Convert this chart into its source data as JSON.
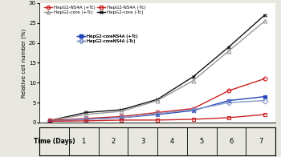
{
  "days": [
    1,
    2,
    3,
    4,
    5,
    6,
    7
  ],
  "series": {
    "HepG2-NS4A (+Tc)": [
      0.5,
      1.0,
      1.5,
      2.5,
      3.5,
      8.0,
      11.0
    ],
    "HepG2-NS4A (-Tc)": [
      0.3,
      0.5,
      0.8,
      0.8,
      0.9,
      1.2,
      2.0
    ],
    "HepG2-core (+Tc)": [
      0.5,
      2.5,
      3.5,
      6.0,
      11.5,
      19.5,
      27.0
    ],
    "HepG2-core (-Tc)": [
      0.5,
      2.5,
      3.5,
      6.0,
      11.5,
      19.5,
      27.0
    ],
    "HepG2-coreNS4A (+Tc)": [
      0.3,
      0.8,
      1.2,
      2.0,
      3.0,
      5.5,
      6.5
    ],
    "HepG2-coreNS4A (-Tc)": [
      0.3,
      0.8,
      1.2,
      2.2,
      3.2,
      5.0,
      5.5
    ]
  },
  "colors": {
    "HepG2-NS4A (+Tc)": "#cc2222",
    "HepG2-NS4A (-Tc)": "#cc2222",
    "HepG2-core (+Tc)": "#888888",
    "HepG2-core (-Tc)": "#111111",
    "HepG2-coreNS4A (+Tc)": "#2244cc",
    "HepG2-coreNS4A (-Tc)": "#7788cc"
  },
  "markers": {
    "HepG2-NS4A (+Tc)": "o",
    "HepG2-NS4A (-Tc)": "s",
    "HepG2-core (+Tc)": "^",
    "HepG2-core (-Tc)": "x",
    "HepG2-coreNS4A (+Tc)": "s",
    "HepG2-coreNS4A (-Tc)": "D"
  },
  "ylabel": "Relative cell number (%)",
  "xlabel_label": "Time (Days)",
  "ylim": [
    0,
    30
  ],
  "yticks": [
    0,
    5,
    10,
    15,
    20,
    25,
    30
  ],
  "bg_color": "#e8e8e0",
  "plot_bg": "#ffffff",
  "markersize": 3.5,
  "linewidth": 1.0
}
